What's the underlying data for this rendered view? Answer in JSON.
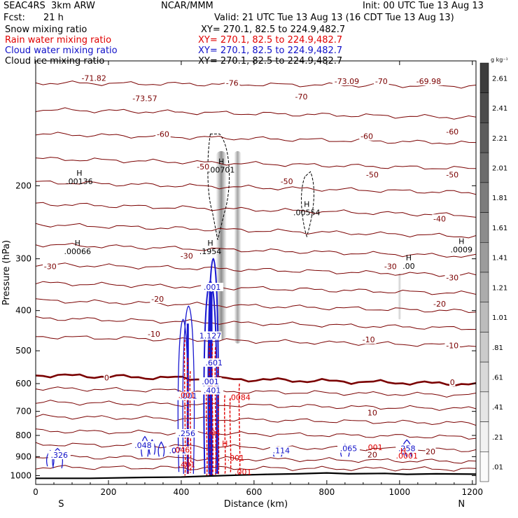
{
  "header": {
    "model": "SEAC4RS  3km ARW",
    "org": "NCAR/MMM",
    "init": "Init: 00 UTC Tue 13 Aug 13",
    "fcst_label": "Fcst:",
    "fcst_value": "21 h",
    "valid": "Valid: 21 UTC Tue 13 Aug 13 (16 CDT Tue 13 Aug 13)",
    "fields": [
      {
        "name": "Snow mixing ratio",
        "xy": "XY= 270.1, 82.5 to 224.9,482.7",
        "color": "#000000"
      },
      {
        "name": "Rain water mixing ratio",
        "xy": "XY= 270.1, 82.5 to 224.9,482.7",
        "color": "#e00000"
      },
      {
        "name": "Cloud water mixing ratio",
        "xy": "XY= 270.1, 82.5 to 224.9,482.7",
        "color": "#1010c8"
      },
      {
        "name": "Cloud ice mixing ratio",
        "xy": "XY= 270.1, 82.5 to 224.9,482.7",
        "color": "#000000"
      }
    ]
  },
  "chart_data": {
    "type": "contour",
    "xlabel": "Distance (km)",
    "ylabel": "Pressure (hPa)",
    "xlim": [
      0,
      1210
    ],
    "ylim": [
      1050,
      100
    ],
    "y_scale": "log",
    "x_ticks": [
      0,
      200,
      400,
      600,
      800,
      1000,
      1200
    ],
    "y_ticks": [
      200,
      300,
      400,
      500,
      600,
      700,
      800,
      900,
      1000
    ],
    "x_end_labels": {
      "left": "S",
      "right": "N"
    },
    "colorbar": {
      "unit": "g kg⁻¹",
      "levels": [
        2.61,
        2.41,
        2.21,
        2.01,
        1.81,
        1.61,
        1.41,
        1.21,
        1.01,
        0.81,
        0.61,
        0.41,
        0.21,
        0.01
      ],
      "labels": [
        "2.61",
        "2.41",
        "2.21",
        "2.01",
        "1.81",
        "1.61",
        "1.41",
        "1.21",
        "1.01",
        ".81",
        ".61",
        ".41",
        ".21",
        ".01"
      ],
      "colors": [
        "#3c3c3c",
        "#4c4c4c",
        "#5c5c5c",
        "#6c6c6c",
        "#7c7c7c",
        "#8c8c8c",
        "#9c9c9c",
        "#acacac",
        "#bcbcbc",
        "#cbcbcb",
        "#d9d9d9",
        "#e6e6e6",
        "#f1f1f1",
        "#fbfbfb"
      ]
    },
    "temperature_labels": [
      {
        "text": "-71.82",
        "x": 160,
        "p": 110
      },
      {
        "text": "-73.57",
        "x": 300,
        "p": 123
      },
      {
        "text": "-76",
        "x": 540,
        "p": 113
      },
      {
        "text": "-73.09",
        "x": 855,
        "p": 112
      },
      {
        "text": "-69.98",
        "x": 1080,
        "p": 112
      },
      {
        "text": "-70",
        "x": 730,
        "p": 122
      },
      {
        "text": "-70",
        "x": 950,
        "p": 112
      },
      {
        "text": "-60",
        "x": 350,
        "p": 150
      },
      {
        "text": "-60",
        "x": 910,
        "p": 152
      },
      {
        "text": "-60",
        "x": 1145,
        "p": 148
      },
      {
        "text": "-50",
        "x": 460,
        "p": 180
      },
      {
        "text": "-50",
        "x": 690,
        "p": 195
      },
      {
        "text": "-50",
        "x": 925,
        "p": 188
      },
      {
        "text": "-50",
        "x": 1145,
        "p": 188
      },
      {
        "text": "-40",
        "x": 1110,
        "p": 240
      },
      {
        "text": "-30",
        "x": 40,
        "p": 313
      },
      {
        "text": "-30",
        "x": 415,
        "p": 295
      },
      {
        "text": "-30",
        "x": 975,
        "p": 313
      },
      {
        "text": "-30",
        "x": 1145,
        "p": 333
      },
      {
        "text": "-20",
        "x": 335,
        "p": 375
      },
      {
        "text": "-20",
        "x": 1110,
        "p": 385
      },
      {
        "text": "-10",
        "x": 325,
        "p": 455
      },
      {
        "text": "-10",
        "x": 915,
        "p": 470
      },
      {
        "text": "-10",
        "x": 1145,
        "p": 485
      },
      {
        "text": "0",
        "x": 195,
        "p": 580
      },
      {
        "text": "0",
        "x": 1145,
        "p": 595
      },
      {
        "text": "10",
        "x": 925,
        "p": 705
      },
      {
        "text": "20",
        "x": 925,
        "p": 890
      },
      {
        "text": "20",
        "x": 1085,
        "p": 875
      }
    ],
    "temperature_contours": [
      {
        "level": -70,
        "p_left": 113,
        "p_right": 115
      },
      {
        "level": -60,
        "p_left": 131,
        "p_right": 137
      },
      {
        "level": -55,
        "p_left": 150,
        "p_right": 158
      },
      {
        "level": -50,
        "p_left": 172,
        "p_right": 182
      },
      {
        "level": -45,
        "p_left": 196,
        "p_right": 208
      },
      {
        "level": -40,
        "p_left": 221,
        "p_right": 236
      },
      {
        "level": -35,
        "p_left": 248,
        "p_right": 265
      },
      {
        "level": -30,
        "p_left": 277,
        "p_right": 296
      },
      {
        "level": -25,
        "p_left": 309,
        "p_right": 329
      },
      {
        "level": -20,
        "p_left": 343,
        "p_right": 364
      },
      {
        "level": -15,
        "p_left": 378,
        "p_right": 402
      },
      {
        "level": -10,
        "p_left": 417,
        "p_right": 442
      },
      {
        "level": -5,
        "p_left": 462,
        "p_right": 486
      },
      {
        "level": 0,
        "p_left": 572,
        "p_right": 602,
        "bold": true
      },
      {
        "level": 5,
        "p_left": 616,
        "p_right": 640
      },
      {
        "level": 10,
        "p_left": 665,
        "p_right": 690
      },
      {
        "level": 15,
        "p_left": 720,
        "p_right": 748
      },
      {
        "level": 20,
        "p_left": 780,
        "p_right": 808
      },
      {
        "level": 25,
        "p_left": 840,
        "p_right": 868
      },
      {
        "level": 30,
        "p_left": 900,
        "p_right": 925
      },
      {
        "level": 35,
        "p_left": 955,
        "p_right": 965
      }
    ],
    "terrain_surface": [
      [
        0,
        1015
      ],
      [
        150,
        1015
      ],
      [
        300,
        1010
      ],
      [
        400,
        1008
      ],
      [
        480,
        1002
      ],
      [
        560,
        997
      ],
      [
        640,
        993
      ],
      [
        720,
        990
      ],
      [
        800,
        985
      ],
      [
        860,
        990
      ],
      [
        960,
        988
      ],
      [
        1020,
        993
      ],
      [
        1100,
        990
      ],
      [
        1210,
        992
      ]
    ],
    "snow_max_labels": [
      {
        "text": ".00136",
        "x": 120,
        "p": 195
      },
      {
        "text": ".00066",
        "x": 115,
        "p": 288
      },
      {
        "text": ".1954",
        "x": 480,
        "p": 288
      },
      {
        "text": ".00701",
        "x": 510,
        "p": 183
      },
      {
        "text": ".00554",
        "x": 745,
        "p": 232
      },
      {
        "text": ".00",
        "x": 1025,
        "p": 312
      },
      {
        "text": ".0009",
        "x": 1170,
        "p": 285
      }
    ],
    "snow_shading": [
      {
        "x": 510,
        "p_top": 165,
        "p_bottom": 470,
        "width_km": 30,
        "value": 1.0
      },
      {
        "x": 555,
        "p_top": 165,
        "p_bottom": 480,
        "width_km": 20,
        "value": 0.8
      },
      {
        "x": 1000,
        "p_top": 325,
        "p_bottom": 420,
        "width_km": 10,
        "value": 0.4
      }
    ],
    "cloud_water_labels": [
      {
        "text": ".001",
        "x": 485,
        "p": 355
      },
      {
        "text": "1.127",
        "x": 480,
        "p": 465
      },
      {
        "text": ".601",
        "x": 490,
        "p": 540
      },
      {
        "text": ".001",
        "x": 480,
        "p": 600
      },
      {
        "text": ".401",
        "x": 485,
        "p": 630
      },
      {
        "text": ".001",
        "x": 420,
        "p": 650
      },
      {
        "text": ".256",
        "x": 415,
        "p": 800
      },
      {
        "text": ".048",
        "x": 295,
        "p": 855
      },
      {
        "text": ".071",
        "x": 390,
        "p": 880
      },
      {
        "text": ".326",
        "x": 65,
        "p": 902
      },
      {
        "text": ".114",
        "x": 675,
        "p": 880
      },
      {
        "text": ".065",
        "x": 860,
        "p": 870
      },
      {
        "text": ".258",
        "x": 1020,
        "p": 870
      }
    ],
    "rain_water_labels": [
      {
        "text": ".001",
        "x": 415,
        "p": 650
      },
      {
        "text": ".0084",
        "x": 560,
        "p": 657
      },
      {
        "text": ".04",
        "x": 490,
        "p": 800
      },
      {
        "text": ".046",
        "x": 400,
        "p": 880
      },
      {
        "text": ".401",
        "x": 415,
        "p": 955
      },
      {
        "text": ".001",
        "x": 550,
        "p": 920
      },
      {
        "text": ".001",
        "x": 570,
        "p": 995
      },
      {
        "text": ".001",
        "x": 930,
        "p": 868
      },
      {
        "text": ".0001",
        "x": 1020,
        "p": 910
      },
      {
        "text": "H",
        "x": 520,
        "p": 849
      },
      {
        "text": "H",
        "x": 1010,
        "p": 885
      }
    ]
  }
}
